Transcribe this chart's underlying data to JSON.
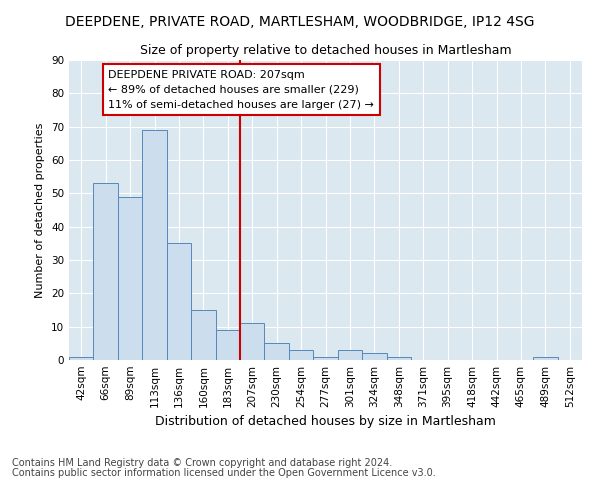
{
  "title1": "DEEPDENE, PRIVATE ROAD, MARTLESHAM, WOODBRIDGE, IP12 4SG",
  "title2": "Size of property relative to detached houses in Martlesham",
  "xlabel": "Distribution of detached houses by size in Martlesham",
  "ylabel": "Number of detached properties",
  "categories": [
    "42sqm",
    "66sqm",
    "89sqm",
    "113sqm",
    "136sqm",
    "160sqm",
    "183sqm",
    "207sqm",
    "230sqm",
    "254sqm",
    "277sqm",
    "301sqm",
    "324sqm",
    "348sqm",
    "371sqm",
    "395sqm",
    "418sqm",
    "442sqm",
    "465sqm",
    "489sqm",
    "512sqm"
  ],
  "values": [
    1,
    53,
    49,
    69,
    35,
    15,
    9,
    11,
    5,
    3,
    1,
    3,
    2,
    1,
    0,
    0,
    0,
    0,
    0,
    1,
    0
  ],
  "bar_color": "#ccdded",
  "bar_edge_color": "#5588bb",
  "vline_color": "#cc0000",
  "annotation_text": "DEEPDENE PRIVATE ROAD: 207sqm\n← 89% of detached houses are smaller (229)\n11% of semi-detached houses are larger (27) →",
  "annotation_box_facecolor": "#ffffff",
  "annotation_box_edgecolor": "#cc0000",
  "ylim": [
    0,
    90
  ],
  "yticks": [
    0,
    10,
    20,
    30,
    40,
    50,
    60,
    70,
    80,
    90
  ],
  "footnote1": "Contains HM Land Registry data © Crown copyright and database right 2024.",
  "footnote2": "Contains public sector information licensed under the Open Government Licence v3.0.",
  "fig_bg_color": "#ffffff",
  "plot_bg_color": "#dce8f0",
  "grid_color": "#ffffff",
  "title1_fontsize": 10,
  "title2_fontsize": 9,
  "xlabel_fontsize": 9,
  "ylabel_fontsize": 8,
  "tick_fontsize": 7.5,
  "annot_fontsize": 8,
  "footnote_fontsize": 7
}
